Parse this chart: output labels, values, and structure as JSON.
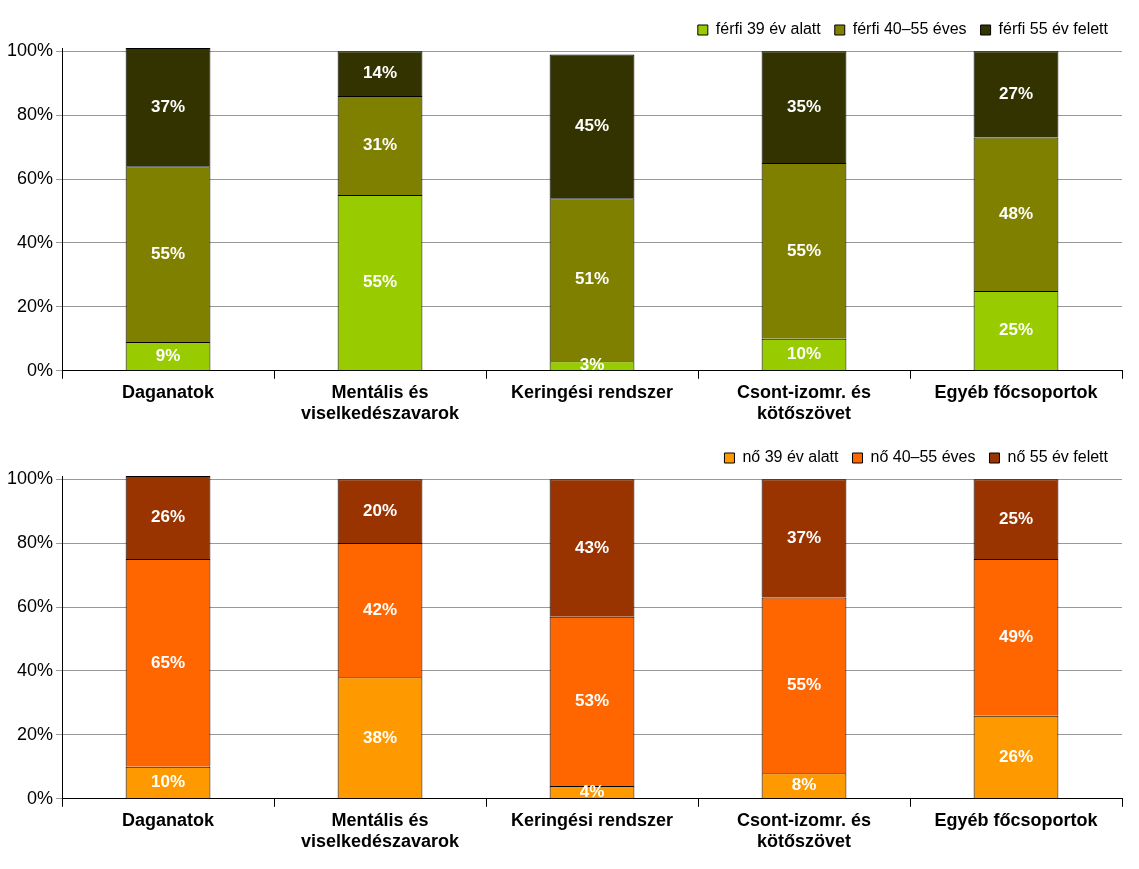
{
  "chart_data": [
    {
      "type": "bar",
      "stacked": true,
      "categories": [
        "Daganatok",
        "Mentális és viselkedészavarok",
        "Keringési rendszer",
        "Csont-izomr. és kötőszövet",
        "Egyéb főcsoportok"
      ],
      "series": [
        {
          "name": "férfi 39 év alatt",
          "color": "#99cc00",
          "values": [
            9,
            55,
            3,
            10,
            25
          ],
          "value_labels": [
            "9%",
            "55%",
            "3%",
            "10%",
            "25%"
          ]
        },
        {
          "name": "férfi 40–55 éves",
          "color": "#808000",
          "values": [
            55,
            31,
            51,
            55,
            48
          ],
          "value_labels": [
            "55%",
            "31%",
            "51%",
            "55%",
            "48%"
          ]
        },
        {
          "name": "férfi 55 év felett",
          "color": "#333300",
          "values": [
            37,
            14,
            45,
            35,
            27
          ],
          "value_labels": [
            "37%",
            "14%",
            "45%",
            "35%",
            "27%"
          ]
        }
      ],
      "ylim": [
        0,
        101
      ],
      "yticks": [
        {
          "value": 0,
          "label": "0%"
        },
        {
          "value": 20,
          "label": "20%"
        },
        {
          "value": 40,
          "label": "40%"
        },
        {
          "value": 60,
          "label": "60%"
        },
        {
          "value": 80,
          "label": "80%"
        },
        {
          "value": 100,
          "label": "100%"
        }
      ],
      "grid": "y",
      "legend": "top right"
    },
    {
      "type": "bar",
      "stacked": true,
      "categories": [
        "Daganatok",
        "Mentális és viselkedészavarok",
        "Keringési rendszer",
        "Csont-izomr. és kötőszövet",
        "Egyéb főcsoportok"
      ],
      "series": [
        {
          "name": "nő 39 év alatt",
          "color": "#ff9900",
          "values": [
            10,
            38,
            4,
            8,
            26
          ],
          "value_labels": [
            "10%",
            "38%",
            "4%",
            "8%",
            "26%"
          ]
        },
        {
          "name": "nő 40–55 éves",
          "color": "#ff6600",
          "values": [
            65,
            42,
            53,
            55,
            49
          ],
          "value_labels": [
            "65%",
            "42%",
            "53%",
            "55%",
            "49%"
          ]
        },
        {
          "name": "nő 55 év felett",
          "color": "#993300",
          "values": [
            26,
            20,
            43,
            37,
            25
          ],
          "value_labels": [
            "26%",
            "20%",
            "43%",
            "37%",
            "25%"
          ]
        }
      ],
      "ylim": [
        0,
        101
      ],
      "yticks": [
        {
          "value": 0,
          "label": "0%"
        },
        {
          "value": 20,
          "label": "20%"
        },
        {
          "value": 40,
          "label": "40%"
        },
        {
          "value": 60,
          "label": "60%"
        },
        {
          "value": 80,
          "label": "80%"
        },
        {
          "value": 100,
          "label": "100%"
        }
      ],
      "grid": "y",
      "legend": "top right"
    }
  ]
}
